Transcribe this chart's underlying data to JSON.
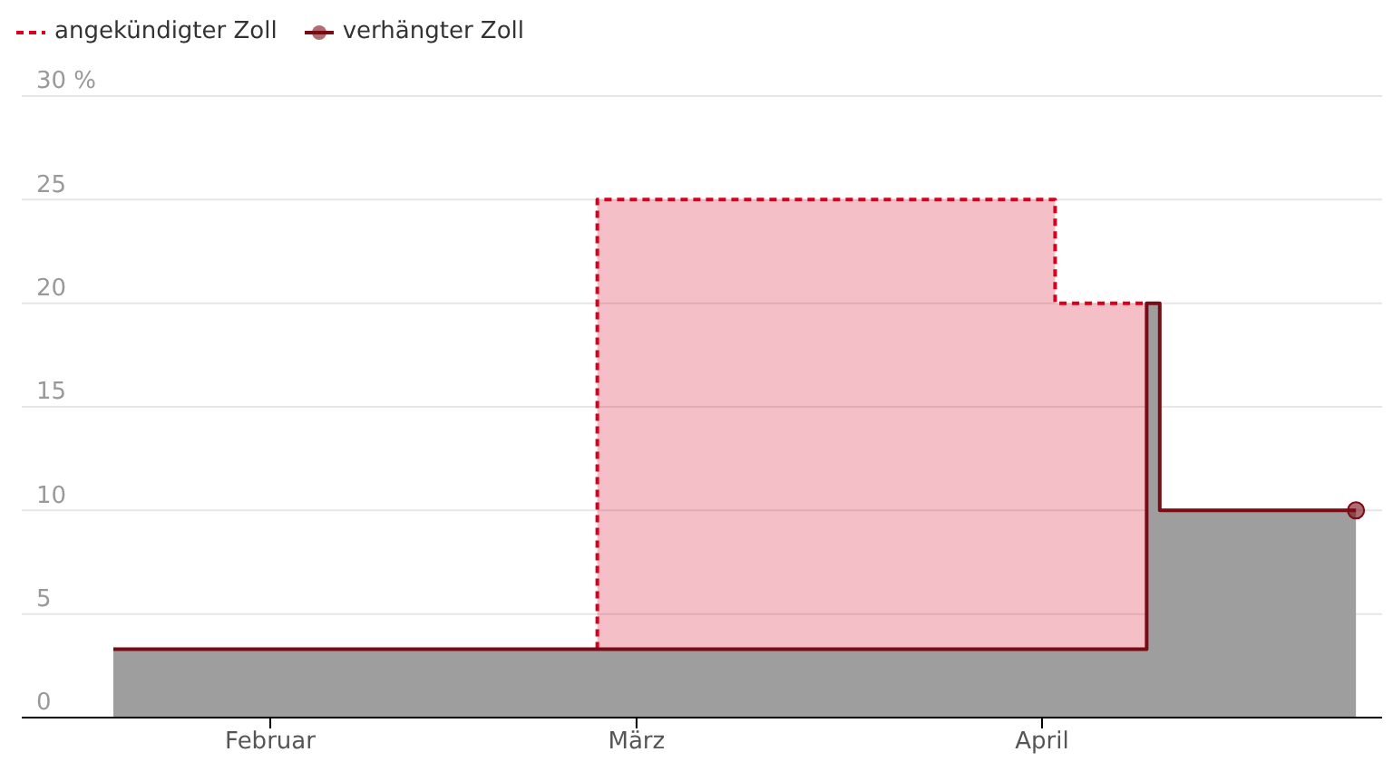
{
  "chart_data": {
    "type": "area",
    "series": [
      {
        "name": "angekündigter Zoll",
        "color": "#d7001e",
        "line_style": "dashed",
        "marker": "none",
        "x": [
          "--02-26",
          "--02-26",
          "--04-02",
          "--04-02",
          "--04-09"
        ],
        "values": [
          3.3,
          25,
          25,
          20,
          20
        ]
      },
      {
        "name": "verhängter Zoll",
        "color": "#7a0a14",
        "line_style": "solid",
        "marker": "none",
        "x": [
          "--01-20",
          "--04-09",
          "--04-09",
          "--04-10",
          "--04-10",
          "--04-25"
        ],
        "values": [
          3.3,
          3.3,
          20,
          20,
          10,
          10
        ]
      },
      {
        "type": "scatter",
        "color": "#7a0a14",
        "marker": "circle",
        "x": [
          "--04-25"
        ],
        "values": [
          10
        ]
      }
    ],
    "xlim": [
      "--01-13",
      "--04-27"
    ],
    "xticks": [
      {
        "value": "--02-01",
        "label": "Februar"
      },
      {
        "value": "--03-01",
        "label": "März"
      },
      {
        "value": "--04-01",
        "label": "April"
      }
    ],
    "ylim": [
      0,
      30
    ],
    "yticks": [
      0,
      5,
      10,
      15,
      20,
      25,
      {
        "value": 30,
        "label": "30 %"
      }
    ],
    "grid": "y",
    "legend": "top left"
  }
}
